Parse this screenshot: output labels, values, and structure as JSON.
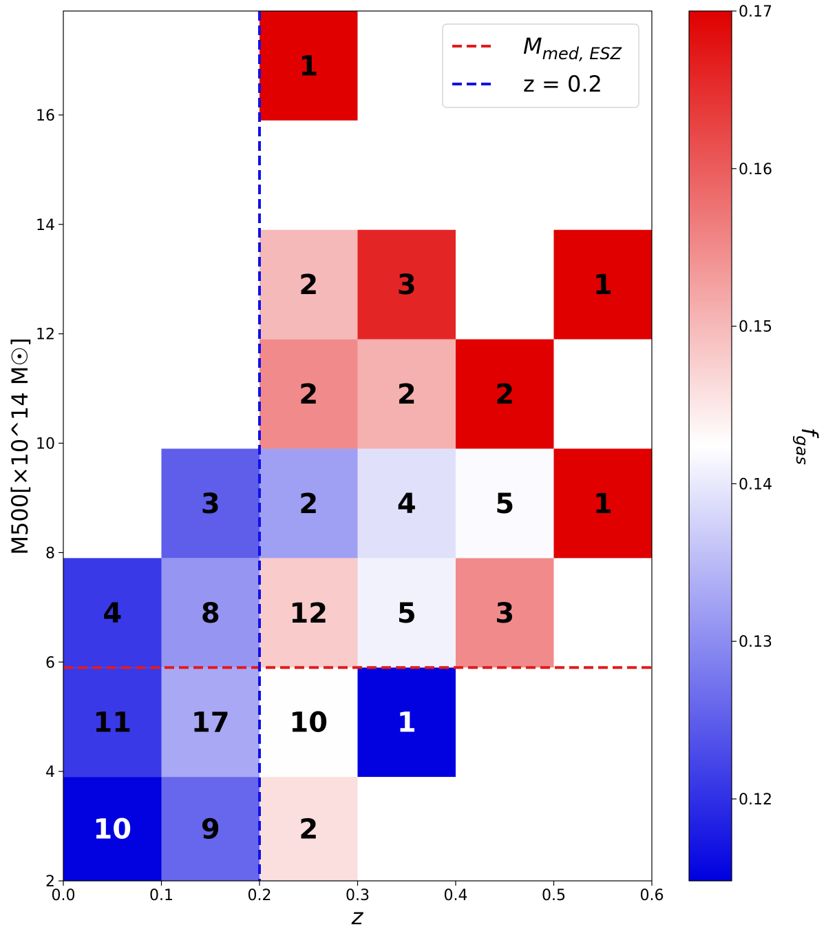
{
  "chart_data": {
    "type": "heatmap",
    "title": "",
    "xlabel": "z",
    "ylabel": "M500[×10^14 M☉]",
    "xlim": [
      0.0,
      0.6
    ],
    "ylim": [
      2,
      17.9
    ],
    "x_ticks": [
      "0.0",
      "0.1",
      "0.2",
      "0.3",
      "0.4",
      "0.5",
      "0.6"
    ],
    "y_ticks": [
      "2",
      "4",
      "6",
      "8",
      "10",
      "12",
      "14",
      "16"
    ],
    "x_bin_edges": [
      0.0,
      0.1,
      0.2,
      0.3,
      0.4,
      0.5,
      0.6
    ],
    "y_bin_edges": [
      1.9,
      3.9,
      5.9,
      7.9,
      9.9,
      11.9,
      13.9,
      15.9,
      17.9
    ],
    "cells": [
      {
        "x0": 0.0,
        "x1": 0.1,
        "y0": 1.9,
        "y1": 3.9,
        "count": "10",
        "fgas": 0.115
      },
      {
        "x0": 0.1,
        "x1": 0.2,
        "y0": 1.9,
        "y1": 3.9,
        "count": "9",
        "fgas": 0.126
      },
      {
        "x0": 0.2,
        "x1": 0.3,
        "y0": 1.9,
        "y1": 3.9,
        "count": "2",
        "fgas": 0.146
      },
      {
        "x0": 0.0,
        "x1": 0.1,
        "y0": 3.9,
        "y1": 5.9,
        "count": "11",
        "fgas": 0.121
      },
      {
        "x0": 0.1,
        "x1": 0.2,
        "y0": 3.9,
        "y1": 5.9,
        "count": "17",
        "fgas": 0.133
      },
      {
        "x0": 0.2,
        "x1": 0.3,
        "y0": 3.9,
        "y1": 5.9,
        "count": "10",
        "fgas": 0.1425
      },
      {
        "x0": 0.3,
        "x1": 0.4,
        "y0": 3.9,
        "y1": 5.9,
        "count": "1",
        "fgas": 0.115
      },
      {
        "x0": 0.0,
        "x1": 0.1,
        "y0": 5.9,
        "y1": 7.9,
        "count": "4",
        "fgas": 0.121
      },
      {
        "x0": 0.1,
        "x1": 0.2,
        "y0": 5.9,
        "y1": 7.9,
        "count": "8",
        "fgas": 0.131
      },
      {
        "x0": 0.2,
        "x1": 0.3,
        "y0": 5.9,
        "y1": 7.9,
        "count": "12",
        "fgas": 0.148
      },
      {
        "x0": 0.3,
        "x1": 0.4,
        "y0": 5.9,
        "y1": 7.9,
        "count": "5",
        "fgas": 0.141
      },
      {
        "x0": 0.4,
        "x1": 0.5,
        "y0": 5.9,
        "y1": 7.9,
        "count": "3",
        "fgas": 0.155
      },
      {
        "x0": 0.1,
        "x1": 0.2,
        "y0": 7.9,
        "y1": 9.9,
        "count": "3",
        "fgas": 0.125
      },
      {
        "x0": 0.2,
        "x1": 0.3,
        "y0": 7.9,
        "y1": 9.9,
        "count": "2",
        "fgas": 0.132
      },
      {
        "x0": 0.3,
        "x1": 0.4,
        "y0": 7.9,
        "y1": 9.9,
        "count": "4",
        "fgas": 0.139
      },
      {
        "x0": 0.4,
        "x1": 0.5,
        "y0": 7.9,
        "y1": 9.9,
        "count": "5",
        "fgas": 0.142
      },
      {
        "x0": 0.5,
        "x1": 0.6,
        "y0": 7.9,
        "y1": 9.9,
        "count": "1",
        "fgas": 0.17
      },
      {
        "x0": 0.2,
        "x1": 0.3,
        "y0": 9.9,
        "y1": 11.9,
        "count": "2",
        "fgas": 0.155
      },
      {
        "x0": 0.3,
        "x1": 0.4,
        "y0": 9.9,
        "y1": 11.9,
        "count": "2",
        "fgas": 0.151
      },
      {
        "x0": 0.4,
        "x1": 0.5,
        "y0": 9.9,
        "y1": 11.9,
        "count": "2",
        "fgas": 0.17
      },
      {
        "x0": 0.2,
        "x1": 0.3,
        "y0": 11.9,
        "y1": 13.9,
        "count": "2",
        "fgas": 0.15
      },
      {
        "x0": 0.3,
        "x1": 0.4,
        "y0": 11.9,
        "y1": 13.9,
        "count": "3",
        "fgas": 0.166
      },
      {
        "x0": 0.5,
        "x1": 0.6,
        "y0": 11.9,
        "y1": 13.9,
        "count": "1",
        "fgas": 0.17
      },
      {
        "x0": 0.2,
        "x1": 0.3,
        "y0": 15.9,
        "y1": 17.9,
        "count": "1",
        "fgas": 0.17
      }
    ],
    "reference_lines": [
      {
        "orientation": "horizontal",
        "value": 5.9,
        "color": "#e31a1c",
        "legend": "M_med,ESZ"
      },
      {
        "orientation": "vertical",
        "value": 0.2,
        "color": "#1010e8",
        "legend": "z = 0.2"
      }
    ],
    "legend": {
      "placement": "top-right",
      "entries": [
        {
          "label_main": "M",
          "label_sub": "med, ESZ",
          "color": "#e31a1c"
        },
        {
          "label_main": "z = 0.2",
          "label_sub": "",
          "color": "#1010e8"
        }
      ]
    },
    "colorbar": {
      "label_main": "f",
      "label_sub": "gas",
      "range": [
        0.1148,
        0.17
      ],
      "ticks": [
        "0.12",
        "0.13",
        "0.14",
        "0.15",
        "0.16",
        "0.17"
      ],
      "tick_values": [
        0.12,
        0.13,
        0.14,
        0.15,
        0.16,
        0.17
      ],
      "colormap": "bwr"
    },
    "grid": false
  }
}
